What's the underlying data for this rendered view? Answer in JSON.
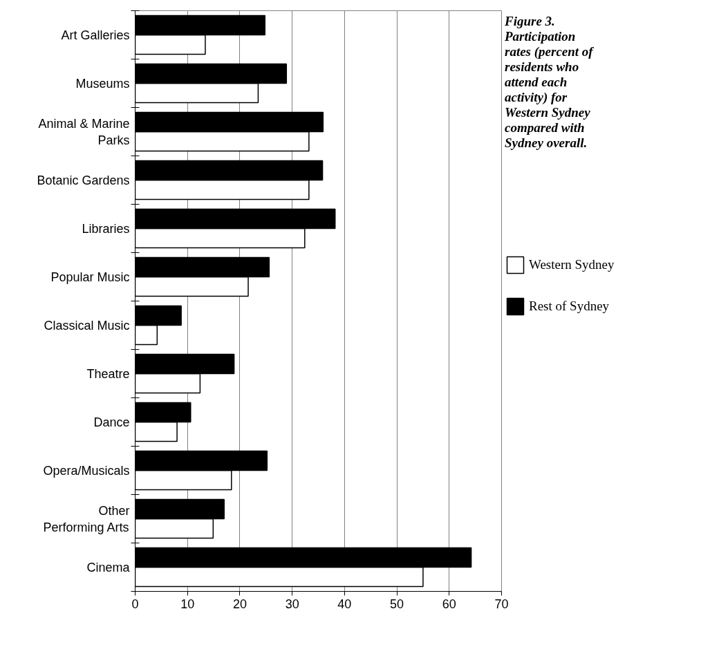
{
  "chart_data": {
    "type": "bar",
    "orientation": "horizontal",
    "title": "Figure 3. Participation rates (percent of residents who attend each activity) for Western Sydney compared with Sydney overall.",
    "categories": [
      "Art Galleries",
      "Museums",
      "Animal & Marine Parks",
      "Botanic Gardens",
      "Libraries",
      "Popular Music",
      "Classical Music",
      "Theatre",
      "Dance",
      "Opera/Musicals",
      "Other Performing Arts",
      "Cinema"
    ],
    "series": [
      {
        "name": "Western Sydney",
        "color": "#ffffff",
        "values": [
          13.4,
          23.5,
          33.2,
          33.2,
          32.4,
          21.6,
          4.2,
          12.4,
          8.0,
          18.4,
          14.9,
          55.0
        ]
      },
      {
        "name": "Rest of Sydney",
        "color": "#000000",
        "values": [
          24.8,
          28.9,
          35.9,
          35.8,
          38.2,
          25.6,
          8.8,
          18.9,
          10.6,
          25.2,
          17.0,
          64.2
        ]
      }
    ],
    "xlim": [
      0,
      70
    ],
    "xticks": [
      0,
      10,
      20,
      30,
      40,
      50,
      60,
      70
    ],
    "grid": "x",
    "legend": "right"
  }
}
